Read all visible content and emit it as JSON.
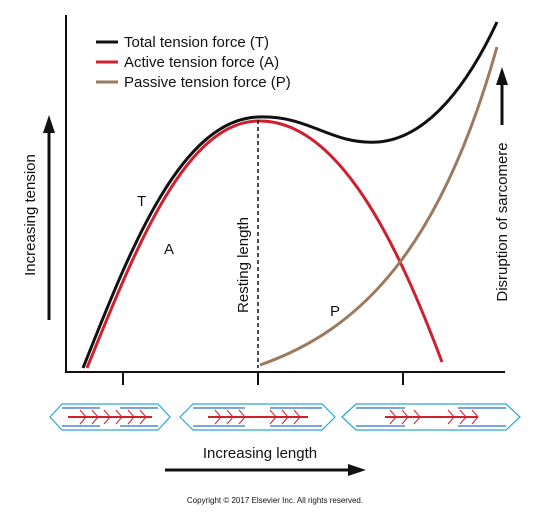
{
  "legend": {
    "items": [
      "Total tension force (T)",
      "Active tension force (A)",
      "Passive tension force (P)"
    ]
  },
  "curve_labels": {
    "total": "T",
    "active": "A",
    "passive": "P"
  },
  "annotations": {
    "resting": "Resting length",
    "disruption": "Disruption of sarcomere"
  },
  "axes": {
    "y_label": "Increasing tension",
    "x_label": "Increasing length"
  },
  "footer": "Copyright © 2017 Elsevier Inc. All rights reserved."
}
